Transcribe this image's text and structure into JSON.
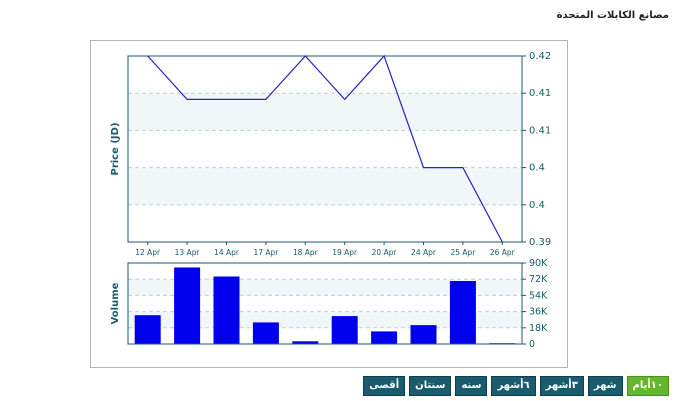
{
  "page": {
    "title": "مصانع الكابلات المتحدة"
  },
  "range_buttons": [
    {
      "label": "١٠أيام",
      "active": true
    },
    {
      "label": "شهر",
      "active": false
    },
    {
      "label": "٣أشهر",
      "active": false
    },
    {
      "label": "٦أشهر",
      "active": false
    },
    {
      "label": "سنه",
      "active": false
    },
    {
      "label": "سنتان",
      "active": false
    },
    {
      "label": "أقصى",
      "active": false
    }
  ],
  "colors": {
    "line": "#2222cc",
    "bar": "#0000ee",
    "axis": "#1a5b6e",
    "band": "#f1f7f8",
    "grid": "#b9d3d8"
  },
  "chart_data": [
    {
      "type": "line",
      "ylabel": "Price (JD)",
      "categories": [
        "12 Apr",
        "13 Apr",
        "14 Apr",
        "17 Apr",
        "18 Apr",
        "19 Apr",
        "20 Apr",
        "24 Apr",
        "25 Apr",
        "26 Apr"
      ],
      "values": [
        0.42,
        0.413,
        0.413,
        0.413,
        0.42,
        0.413,
        0.42,
        0.402,
        0.402,
        0.39
      ],
      "y_ticks": [
        {
          "value": 0.39,
          "label": "0.39"
        },
        {
          "value": 0.396,
          "label": "0.4"
        },
        {
          "value": 0.402,
          "label": "0.4"
        },
        {
          "value": 0.408,
          "label": "0.41"
        },
        {
          "value": 0.414,
          "label": "0.41"
        },
        {
          "value": 0.42,
          "label": "0.42"
        }
      ],
      "ylim": [
        0.39,
        0.42
      ],
      "grid": true,
      "axis_side": "right"
    },
    {
      "type": "bar",
      "ylabel": "Volume",
      "categories": [
        "12 Apr",
        "13 Apr",
        "14 Apr",
        "17 Apr",
        "18 Apr",
        "19 Apr",
        "20 Apr",
        "24 Apr",
        "25 Apr",
        "26 Apr"
      ],
      "values": [
        32000,
        85000,
        75000,
        24000,
        3000,
        31000,
        14000,
        21000,
        70000,
        0
      ],
      "y_ticks": [
        {
          "value": 0,
          "label": "0"
        },
        {
          "value": 18000,
          "label": "18K"
        },
        {
          "value": 36000,
          "label": "36K"
        },
        {
          "value": 54000,
          "label": "54K"
        },
        {
          "value": 72000,
          "label": "72K"
        },
        {
          "value": 90000,
          "label": "90K"
        }
      ],
      "ylim": [
        0,
        90000
      ],
      "grid": true,
      "axis_side": "right"
    }
  ]
}
